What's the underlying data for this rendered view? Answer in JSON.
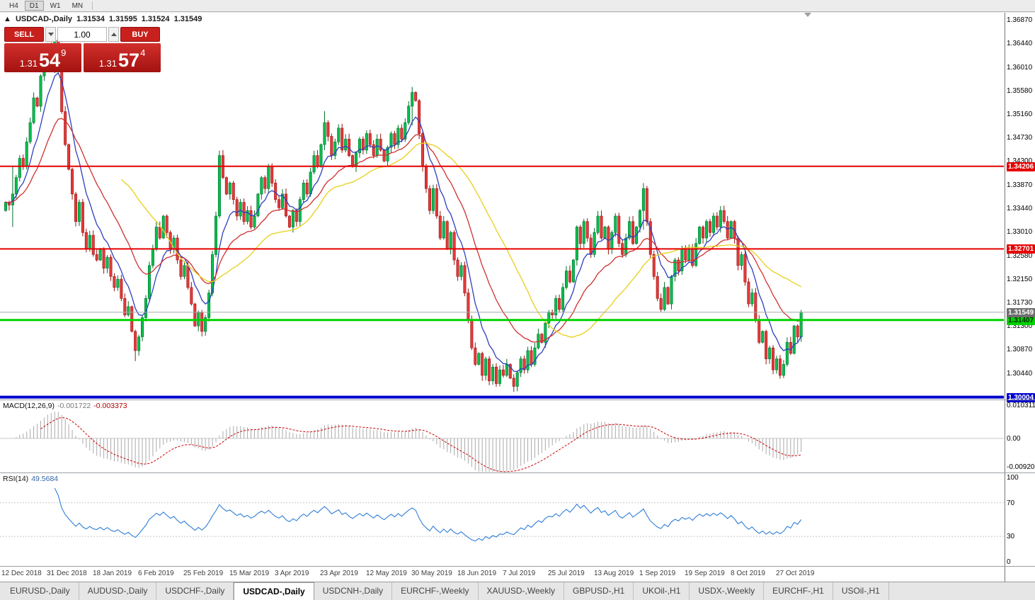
{
  "toolbar": {
    "timeframes": [
      {
        "label": "H4",
        "active": false
      },
      {
        "label": "D1",
        "active": true
      },
      {
        "label": "W1",
        "active": false
      },
      {
        "label": "MN",
        "active": false
      }
    ]
  },
  "chart_header": {
    "collapse_icon": "▲",
    "symbol_title": "USDCAD-,Daily",
    "open": "1.31534",
    "high": "1.31595",
    "low": "1.31524",
    "close": "1.31549"
  },
  "trade_panel": {
    "sell_label": "SELL",
    "buy_label": "BUY",
    "volume": "1.00",
    "sell_price": {
      "big_figure": "1.31",
      "pips": "54",
      "pipette": "9"
    },
    "buy_price": {
      "big_figure": "1.31",
      "pips": "57",
      "pipette": "4"
    }
  },
  "price_axis": {
    "ticks": [
      "1.36870",
      "1.36440",
      "1.36010",
      "1.35580",
      "1.35160",
      "1.34730",
      "1.34300",
      "1.33870",
      "1.33440",
      "1.33010",
      "1.32580",
      "1.32150",
      "1.31730",
      "1.31300",
      "1.30870",
      "1.30440"
    ],
    "current_label": "1.31549",
    "current_label_bg": "#6e6e6e"
  },
  "macd_panel": {
    "title": "MACD(12,26,9)",
    "main_value": "-0.001722",
    "signal_value": "-0.003373",
    "axis": [
      "0.010311",
      "0.00",
      "-0.009203"
    ]
  },
  "rsi_panel": {
    "title": "RSI(14)",
    "value": "49.5684",
    "axis": [
      "100",
      "70",
      "30",
      "0"
    ]
  },
  "date_axis": {
    "labels": [
      "12 Dec 2018",
      "31 Dec 2018",
      "18 Jan 2019",
      "6 Feb 2019",
      "25 Feb 2019",
      "15 Mar 2019",
      "3 Apr 2019",
      "23 Apr 2019",
      "12 May 2019",
      "30 May 2019",
      "18 Jun 2019",
      "7 Jul 2019",
      "25 Jul 2019",
      "13 Aug 2019",
      "1 Sep 2019",
      "19 Sep 2019",
      "8 Oct 2019",
      "27 Oct 2019"
    ]
  },
  "tabs": [
    {
      "label": "EURUSD-,Daily",
      "active": false
    },
    {
      "label": "AUDUSD-,Daily",
      "active": false
    },
    {
      "label": "USDCHF-,Daily",
      "active": false
    },
    {
      "label": "USDCAD-,Daily",
      "active": true
    },
    {
      "label": "USDCNH-,Daily",
      "active": false
    },
    {
      "label": "EURCHF-,Weekly",
      "active": false
    },
    {
      "label": "XAUUSD-,Weekly",
      "active": false
    },
    {
      "label": "GBPUSD-,H1",
      "active": false
    },
    {
      "label": "UKOil-,H1",
      "active": false
    },
    {
      "label": "USDX-,Weekly",
      "active": false
    },
    {
      "label": "EURCHF-,H1",
      "active": false
    },
    {
      "label": "USOil-,H1",
      "active": false
    }
  ],
  "chart_data": {
    "type": "candlestick",
    "symbol": "USDCAD",
    "timeframe": "Daily",
    "current_ohlc": {
      "open": 1.31534,
      "high": 1.31595,
      "low": 1.31524,
      "close": 1.31549
    },
    "current_price": 1.31549,
    "y_axis": {
      "top": 1.37,
      "bottom": 1.2996
    },
    "x_axis": {
      "candles_per_label": 13
    },
    "levels": [
      {
        "price": 1.34206,
        "label": "1.34206",
        "color": "#e60000",
        "text_color": "#ffffff",
        "width": 2
      },
      {
        "price": 1.32701,
        "label": "1.32701",
        "color": "#e60000",
        "text_color": "#ffffff",
        "width": 2
      },
      {
        "price": 1.31407,
        "label": "1.31407",
        "color": "#00d200",
        "text_color": "#002b00",
        "width": 3
      },
      {
        "price": 1.30004,
        "label": "1.30004",
        "color": "#0000cd",
        "text_color": "#ffffff",
        "width": 4
      }
    ],
    "colors": {
      "up": {
        "fill": "#00bf4d",
        "border": "#00702c"
      },
      "down": {
        "fill": "#e43a3a",
        "border": "#9c1212"
      },
      "current_price_line": "#a8a8a8"
    },
    "moving_averages": [
      {
        "period": 8,
        "type": "ema",
        "color": "#2e3fbf"
      },
      {
        "period": 21,
        "type": "ema",
        "color": "#d03030"
      },
      {
        "period": 34,
        "type": "sma",
        "color": "#e8cf1a"
      }
    ],
    "macd": {
      "fast": 12,
      "slow": 26,
      "signal": 9,
      "range": [
        -0.009203,
        0.010311
      ],
      "histogram_color": "#a9a9a9",
      "signal_color": "#cc0000"
    },
    "rsi": {
      "period": 14,
      "range": [
        0,
        100
      ],
      "levels": [
        70,
        30
      ],
      "color": "#2f7ed8"
    },
    "candles": {
      "first_open": 13340,
      "closes": [
        13355,
        13350,
        13370,
        13400,
        13435,
        13420,
        13465,
        13500,
        13545,
        13530,
        13585,
        13620,
        13640,
        13625,
        13650,
        13610,
        13520,
        13460,
        13415,
        13370,
        13320,
        13355,
        13300,
        13270,
        13295,
        13260,
        13250,
        13270,
        13235,
        13255,
        13220,
        13200,
        13215,
        13180,
        13150,
        13165,
        13120,
        13085,
        13110,
        13145,
        13180,
        13240,
        13270,
        13310,
        13290,
        13330,
        13300,
        13270,
        13290,
        13250,
        13220,
        13240,
        13200,
        13170,
        13130,
        13155,
        13120,
        13145,
        13190,
        13260,
        13330,
        13440,
        13400,
        13370,
        13390,
        13360,
        13330,
        13355,
        13320,
        13340,
        13310,
        13330,
        13370,
        13400,
        13380,
        13420,
        13390,
        13360,
        13345,
        13370,
        13330,
        13310,
        13340,
        13320,
        13360,
        13390,
        13370,
        13410,
        13440,
        13420,
        13460,
        13500,
        13475,
        13440,
        13465,
        13490,
        13450,
        13470,
        13440,
        13420,
        13445,
        13470,
        13450,
        13480,
        13460,
        13440,
        13470,
        13450,
        13430,
        13455,
        13480,
        13460,
        13490,
        13470,
        13500,
        13530,
        13555,
        13540,
        13480,
        13420,
        13380,
        13340,
        13380,
        13330,
        13290,
        13320,
        13270,
        13300,
        13250,
        13220,
        13240,
        13190,
        13140,
        13090,
        13060,
        13080,
        13040,
        13070,
        13030,
        13055,
        13025,
        13050,
        13040,
        13060,
        13035,
        13020,
        13045,
        13070,
        13050,
        13085,
        13060,
        13090,
        13115,
        13100,
        13135,
        13155,
        13150,
        13180,
        13160,
        13200,
        13230,
        13210,
        13250,
        13310,
        13280,
        13320,
        13290,
        13260,
        13300,
        13330,
        13290,
        13310,
        13270,
        13300,
        13330,
        13280,
        13260,
        13290,
        13320,
        13280,
        13310,
        13340,
        13380,
        13320,
        13260,
        13220,
        13180,
        13160,
        13200,
        13170,
        13220,
        13250,
        13230,
        13270,
        13250,
        13270,
        13240,
        13280,
        13310,
        13290,
        13320,
        13300,
        13330,
        13310,
        13340,
        13320,
        13290,
        13320,
        13290,
        13240,
        13260,
        13210,
        13170,
        13190,
        13140,
        13100,
        13120,
        13070,
        13090,
        13050,
        13070,
        13040,
        13060,
        13100,
        13080,
        13130,
        13110,
        13155
      ],
      "spikes": {
        "2": [
          13420,
          13310
        ],
        "14": [
          13668,
          13590
        ],
        "37": [
          13118,
          13066
        ],
        "91": [
          13521,
          13450
        ],
        "116": [
          13565,
          13495
        ],
        "145": [
          13042,
          13016
        ],
        "182": [
          13390,
          13305
        ],
        "204": [
          13348,
          13300
        ],
        "221": [
          13058,
          13038
        ]
      }
    }
  }
}
